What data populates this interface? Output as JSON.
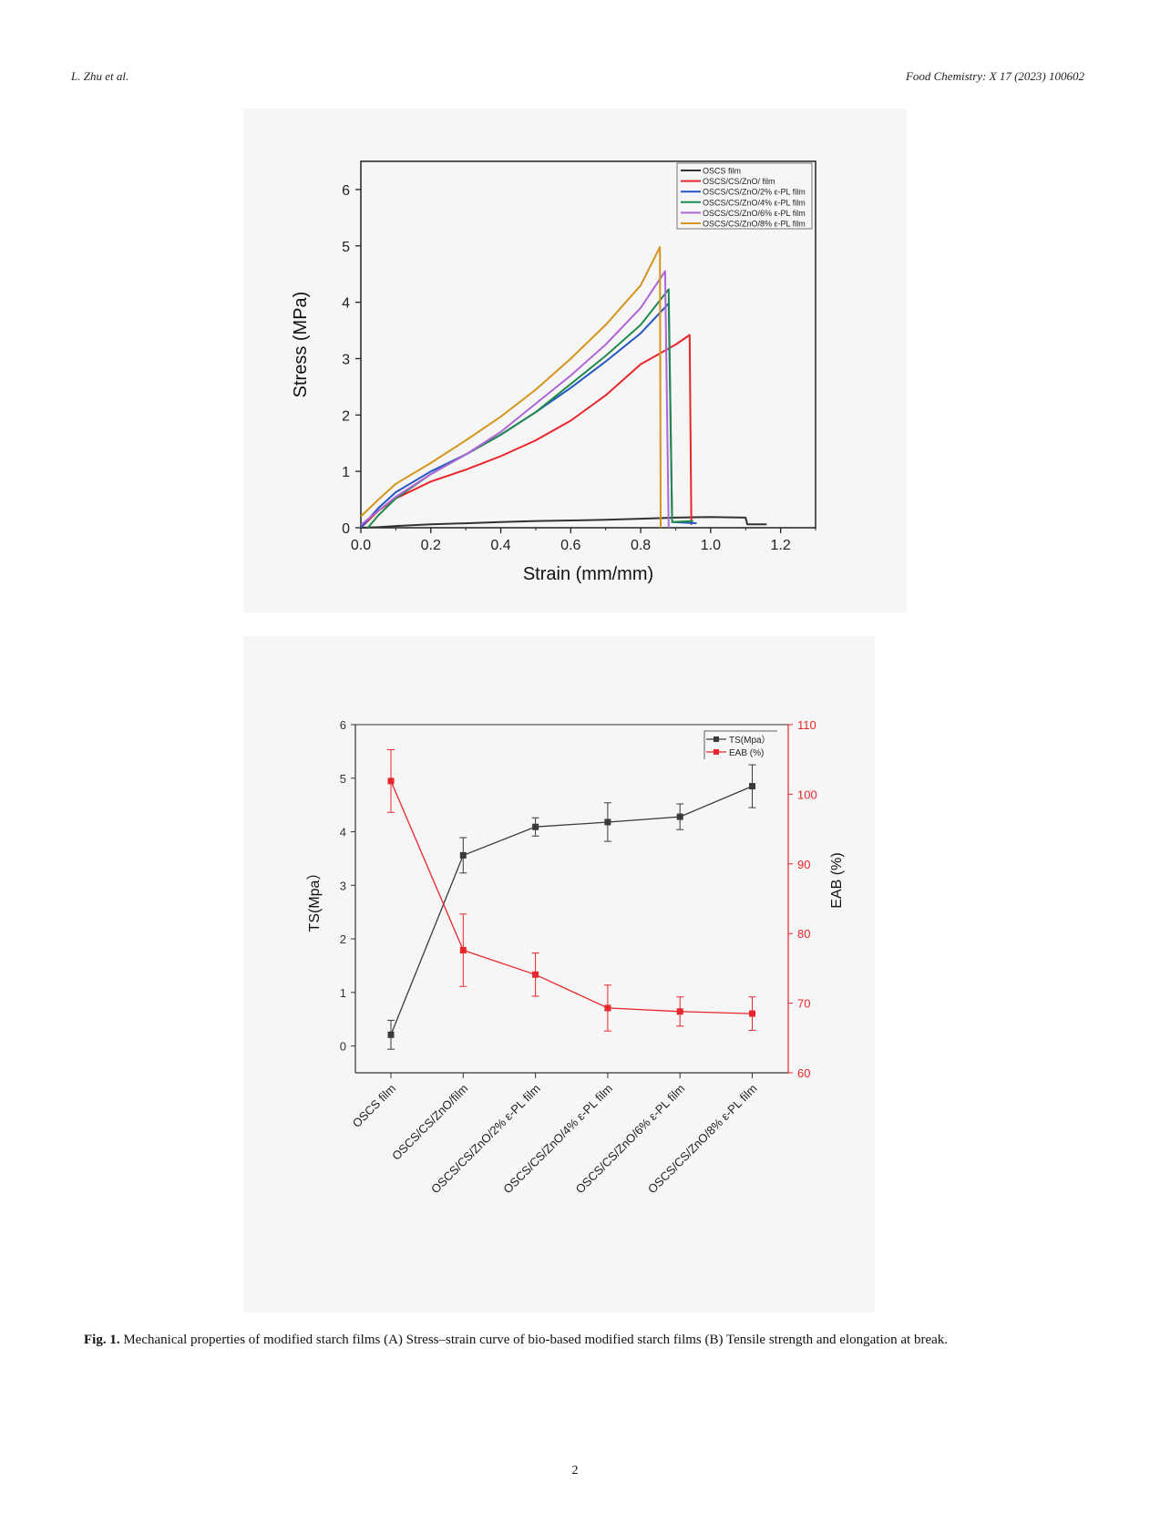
{
  "header": {
    "authors": "L. Zhu et al.",
    "journal": "Food Chemistry: X 17 (2023) 100602"
  },
  "caption": {
    "label": "Fig. 1.",
    "text": "Mechanical properties of modified starch films (A) Stress–strain curve of bio-based modified starch films (B) Tensile strength and elongation at break."
  },
  "page_number": "2",
  "chart_data": [
    {
      "type": "line",
      "title": "",
      "xlabel": "Strain (mm/mm)",
      "ylabel": "Stress (MPa)",
      "xlim": [
        0,
        1.3
      ],
      "ylim": [
        0,
        6.5
      ],
      "xticks": [
        "0.0",
        "0.2",
        "0.4",
        "0.6",
        "0.8",
        "1.0",
        "1.2"
      ],
      "yticks": [
        "0",
        "1",
        "2",
        "3",
        "4",
        "5",
        "6"
      ],
      "grid": false,
      "legend_position": "top-right",
      "series": [
        {
          "name": "OSCS film",
          "color": "#333333",
          "points": [
            [
              0,
              0
            ],
            [
              0.05,
              0.01
            ],
            [
              0.1,
              0.03
            ],
            [
              0.2,
              0.06
            ],
            [
              0.3,
              0.08
            ],
            [
              0.4,
              0.1
            ],
            [
              0.5,
              0.12
            ],
            [
              0.6,
              0.13
            ],
            [
              0.7,
              0.14
            ],
            [
              0.8,
              0.16
            ],
            [
              0.9,
              0.18
            ],
            [
              1.0,
              0.19
            ],
            [
              1.1,
              0.18
            ],
            [
              1.105,
              0.06
            ],
            [
              1.16,
              0.06
            ]
          ]
        },
        {
          "name": "OSCS/CS/ZnO/ film",
          "color": "#e8262b",
          "points": [
            [
              0,
              0
            ],
            [
              0.05,
              0.3
            ],
            [
              0.1,
              0.52
            ],
            [
              0.2,
              0.82
            ],
            [
              0.3,
              1.03
            ],
            [
              0.4,
              1.27
            ],
            [
              0.5,
              1.55
            ],
            [
              0.6,
              1.9
            ],
            [
              0.7,
              2.35
            ],
            [
              0.8,
              2.9
            ],
            [
              0.9,
              3.25
            ],
            [
              0.94,
              3.42
            ],
            [
              0.945,
              0.05
            ]
          ]
        },
        {
          "name": "OSCS/CS/ZnO/2% ε-PL film",
          "color": "#2457c5",
          "points": [
            [
              0,
              0
            ],
            [
              0.05,
              0.35
            ],
            [
              0.1,
              0.63
            ],
            [
              0.2,
              1.0
            ],
            [
              0.3,
              1.3
            ],
            [
              0.4,
              1.65
            ],
            [
              0.5,
              2.05
            ],
            [
              0.6,
              2.48
            ],
            [
              0.7,
              2.95
            ],
            [
              0.8,
              3.45
            ],
            [
              0.88,
              3.98
            ],
            [
              0.89,
              0.1
            ],
            [
              0.96,
              0.08
            ]
          ]
        },
        {
          "name": "OSCS/CS/ZnO/4% ε-PL film",
          "color": "#1f8a4c",
          "points": [
            [
              0.02,
              0
            ],
            [
              0.05,
              0.22
            ],
            [
              0.1,
              0.52
            ],
            [
              0.2,
              0.95
            ],
            [
              0.3,
              1.3
            ],
            [
              0.4,
              1.65
            ],
            [
              0.5,
              2.05
            ],
            [
              0.6,
              2.55
            ],
            [
              0.7,
              3.05
            ],
            [
              0.8,
              3.6
            ],
            [
              0.88,
              4.23
            ],
            [
              0.89,
              0.1
            ],
            [
              0.95,
              0.12
            ]
          ]
        },
        {
          "name": "OSCS/CS/ZnO/6% ε-PL film",
          "color": "#b065d8",
          "points": [
            [
              0,
              0.05
            ],
            [
              0.05,
              0.3
            ],
            [
              0.1,
              0.55
            ],
            [
              0.2,
              0.95
            ],
            [
              0.3,
              1.3
            ],
            [
              0.4,
              1.7
            ],
            [
              0.5,
              2.2
            ],
            [
              0.6,
              2.7
            ],
            [
              0.7,
              3.25
            ],
            [
              0.8,
              3.9
            ],
            [
              0.87,
              4.55
            ],
            [
              0.88,
              0
            ]
          ]
        },
        {
          "name": "OSCS/CS/ZnO/8% ε-PL film",
          "color": "#d4951c",
          "points": [
            [
              0,
              0.2
            ],
            [
              0.05,
              0.5
            ],
            [
              0.1,
              0.78
            ],
            [
              0.2,
              1.15
            ],
            [
              0.3,
              1.55
            ],
            [
              0.4,
              1.97
            ],
            [
              0.5,
              2.45
            ],
            [
              0.6,
              3.0
            ],
            [
              0.7,
              3.6
            ],
            [
              0.8,
              4.3
            ],
            [
              0.855,
              4.98
            ],
            [
              0.857,
              0
            ]
          ]
        }
      ]
    },
    {
      "type": "line",
      "title": "",
      "xlabel": "",
      "ylabel": "TS(Mpa）",
      "ylabel_right": "EAB (%)",
      "ylim": [
        -0.5,
        6
      ],
      "ylim_right": [
        60,
        110
      ],
      "yticks": [
        "0",
        "1",
        "2",
        "3",
        "4",
        "5",
        "6"
      ],
      "yticks_right": [
        "60",
        "70",
        "80",
        "90",
        "100",
        "110"
      ],
      "grid": false,
      "legend_position": "top-right",
      "categories": [
        "OSCS film",
        "OSCS/CS/ZnO/film",
        "OSCS/CS/ZnO/2% ε-PL film",
        "OSCS/CS/ZnO/4% ε-PL film",
        "OSCS/CS/ZnO/6% ε-PL film",
        "OSCS/CS/ZnO/8% ε-PL film"
      ],
      "series": [
        {
          "name": "TS(Mpa）",
          "axis": "left",
          "color": "#3a3a3a",
          "values": [
            0.21,
            3.56,
            4.09,
            4.18,
            4.28,
            4.85
          ],
          "errors": [
            0.27,
            0.33,
            0.17,
            0.36,
            0.24,
            0.4
          ]
        },
        {
          "name": "EAB (%)",
          "axis": "right",
          "color": "#e8262b",
          "values": [
            101.9,
            77.6,
            74.1,
            69.3,
            68.8,
            68.5
          ],
          "errors": [
            4.5,
            5.2,
            3.1,
            3.3,
            2.1,
            2.4
          ]
        }
      ]
    }
  ]
}
